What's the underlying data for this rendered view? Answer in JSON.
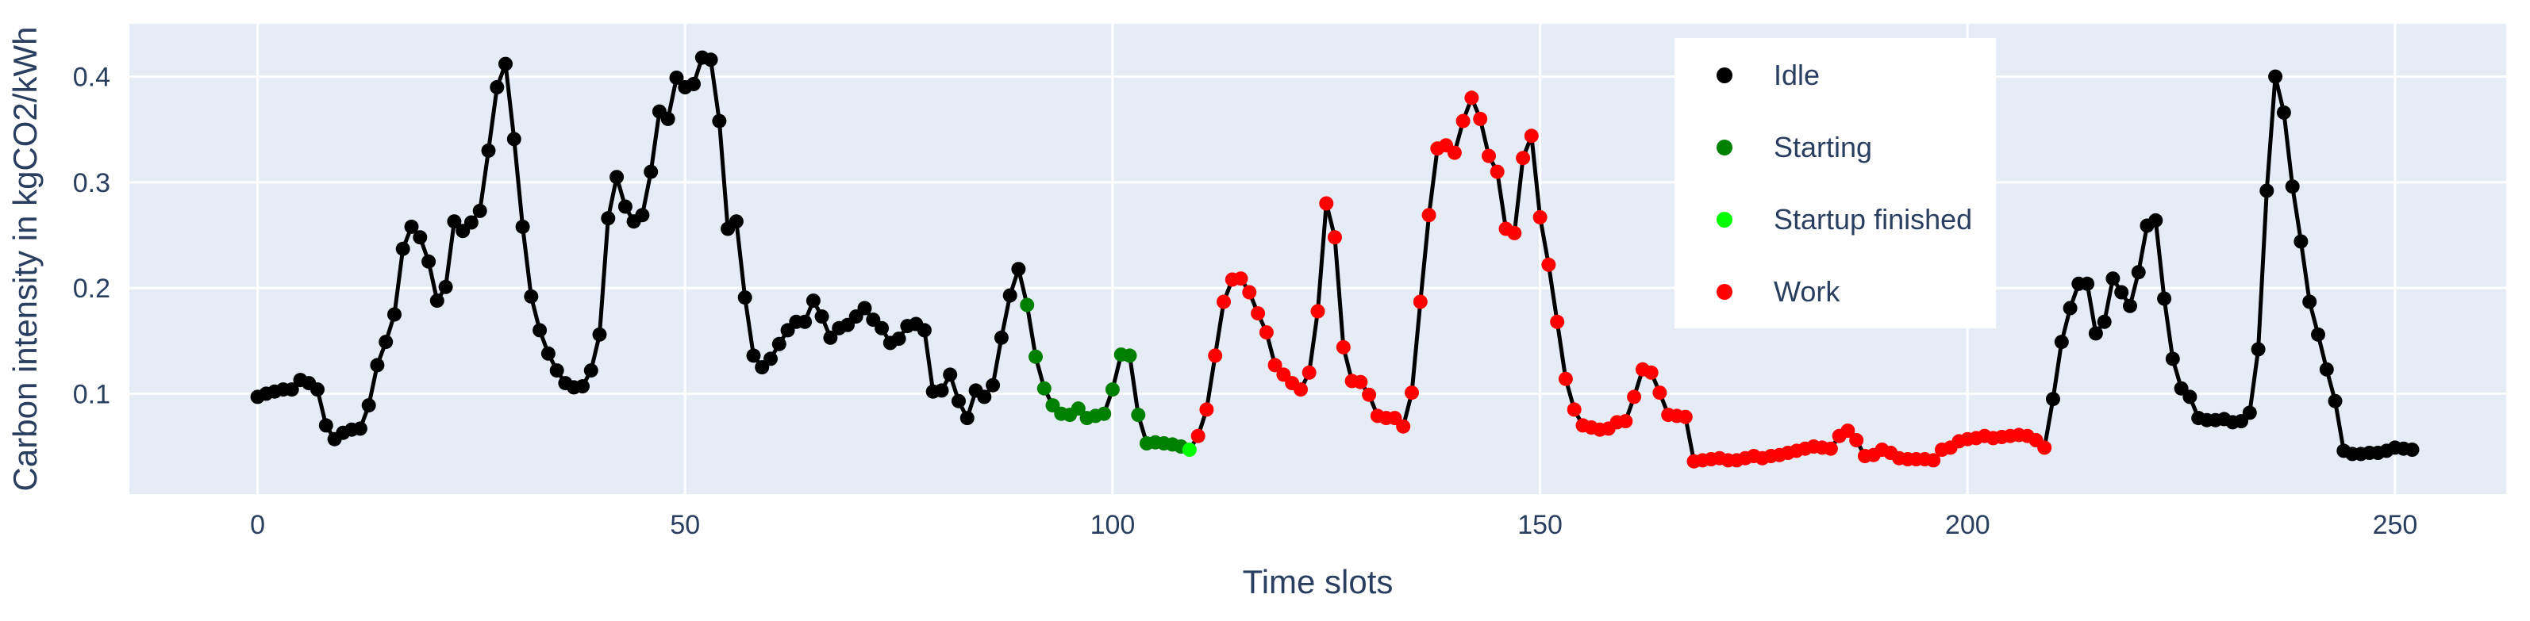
{
  "chart_data": {
    "type": "line",
    "title": "",
    "xlabel": "Time slots",
    "ylabel": "Carbon intensity in kgCO2/kWh",
    "xlim": [
      -15,
      263
    ],
    "ylim": [
      0.005,
      0.45
    ],
    "x_ticks": [
      0,
      50,
      100,
      150,
      200,
      250
    ],
    "y_ticks": [
      0.1,
      0.2,
      0.3,
      0.4
    ],
    "y_tick_labels": [
      "0.1",
      "0.2",
      "0.3",
      "0.4"
    ],
    "grid": true,
    "legend_position": "top-right",
    "line_color": "#000000",
    "plot_background": "#e5ecf6",
    "states": [
      {
        "name": "Idle",
        "color": "#000000"
      },
      {
        "name": "Starting",
        "color": "#008000"
      },
      {
        "name": "Startup finished",
        "color": "#00ff00"
      },
      {
        "name": "Work",
        "color": "#ff0000"
      }
    ],
    "segments": [
      {
        "state": 0,
        "start": 0,
        "end": 89
      },
      {
        "state": 1,
        "start": 90,
        "end": 108
      },
      {
        "state": 2,
        "start": 109,
        "end": 109
      },
      {
        "state": 3,
        "start": 110,
        "end": 207
      },
      {
        "state": 0,
        "start": 208,
        "end": 208
      },
      {
        "state": 3,
        "start": 208,
        "end": 209
      },
      {
        "state": 0,
        "start": 210,
        "end": 249
      }
    ],
    "y": [
      0.097,
      0.1,
      0.102,
      0.104,
      0.104,
      0.113,
      0.11,
      0.104,
      0.07,
      0.057,
      0.063,
      0.066,
      0.067,
      0.089,
      0.127,
      0.149,
      0.175,
      0.237,
      0.258,
      0.248,
      0.225,
      0.188,
      0.201,
      0.263,
      0.254,
      0.262,
      0.273,
      0.33,
      0.39,
      0.412,
      0.341,
      0.258,
      0.192,
      0.16,
      0.138,
      0.122,
      0.11,
      0.106,
      0.107,
      0.122,
      0.156,
      0.266,
      0.305,
      0.277,
      0.263,
      0.269,
      0.31,
      0.367,
      0.36,
      0.399,
      0.39,
      0.393,
      0.418,
      0.416,
      0.358,
      0.256,
      0.263,
      0.191,
      0.136,
      0.125,
      0.133,
      0.147,
      0.16,
      0.168,
      0.168,
      0.188,
      0.173,
      0.153,
      0.162,
      0.165,
      0.173,
      0.181,
      0.17,
      0.162,
      0.148,
      0.152,
      0.164,
      0.166,
      0.16,
      0.102,
      0.103,
      0.118,
      0.093,
      0.077,
      0.103,
      0.097,
      0.108,
      0.153,
      0.193,
      0.218,
      0.184,
      0.135,
      0.105,
      0.089,
      0.081,
      0.08,
      0.086,
      0.077,
      0.079,
      0.081,
      0.104,
      0.137,
      0.136,
      0.08,
      0.053,
      0.054,
      0.053,
      0.052,
      0.05,
      0.047,
      0.06,
      0.085,
      0.136,
      0.187,
      0.208,
      0.209,
      0.196,
      0.176,
      0.158,
      0.127,
      0.118,
      0.11,
      0.104,
      0.12,
      0.178,
      0.28,
      0.248,
      0.144,
      0.112,
      0.111,
      0.099,
      0.079,
      0.077,
      0.077,
      0.069,
      0.101,
      0.187,
      0.269,
      0.332,
      0.335,
      0.328,
      0.358,
      0.38,
      0.36,
      0.325,
      0.31,
      0.256,
      0.252,
      0.323,
      0.344,
      0.267,
      0.222,
      0.168,
      0.114,
      0.085,
      0.07,
      0.068,
      0.066,
      0.067,
      0.073,
      0.074,
      0.097,
      0.123,
      0.12,
      0.101,
      0.08,
      0.079,
      0.078,
      0.036,
      0.037,
      0.038,
      0.039,
      0.037,
      0.037,
      0.039,
      0.041,
      0.039,
      0.041,
      0.042,
      0.044,
      0.046,
      0.048,
      0.05,
      0.049,
      0.048,
      0.06,
      0.065,
      0.056,
      0.041,
      0.042,
      0.047,
      0.044,
      0.039,
      0.038,
      0.038,
      0.038,
      0.037,
      0.047,
      0.049,
      0.055,
      0.057,
      0.058,
      0.06,
      0.058,
      0.059,
      0.06,
      0.061,
      0.06,
      0.056,
      0.049,
      0.095,
      0.149,
      0.181,
      0.204,
      0.204,
      0.157,
      0.168,
      0.209,
      0.196,
      0.183,
      0.215,
      0.259,
      0.264,
      0.19,
      0.133,
      0.105,
      0.097,
      0.077,
      0.075,
      0.075,
      0.076,
      0.073,
      0.074,
      0.082,
      0.142,
      0.292,
      0.4,
      0.366,
      0.296,
      0.244,
      0.187,
      0.156,
      0.123,
      0.093,
      0.046,
      0.043,
      0.043,
      0.044,
      0.044,
      0.046,
      0.049,
      0.048,
      0.047
    ]
  }
}
